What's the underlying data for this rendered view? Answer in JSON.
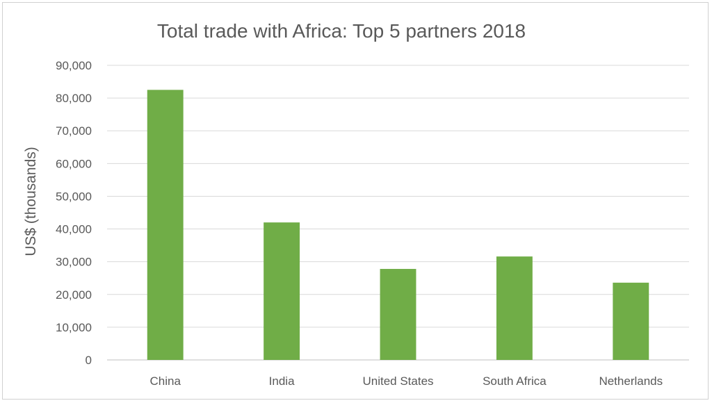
{
  "chart_data": {
    "type": "bar",
    "title": "Total trade with Africa: Top 5 partners 2018",
    "xlabel": "",
    "ylabel": "US$  (thousands)",
    "categories": [
      "China",
      "India",
      "United States",
      "South Africa",
      "Netherlands"
    ],
    "values": [
      82500,
      42000,
      27800,
      31600,
      23600
    ],
    "ylim": [
      0,
      90000
    ],
    "yticks": [
      0,
      10000,
      20000,
      30000,
      40000,
      50000,
      60000,
      70000,
      80000,
      90000
    ],
    "ytick_labels": [
      "0",
      "10,000",
      "20,000",
      "30,000",
      "40,000",
      "50,000",
      "60,000",
      "70,000",
      "80,000",
      "90,000"
    ],
    "grid": true,
    "legend": "none",
    "colors": {
      "bar": "#70ad47"
    }
  }
}
